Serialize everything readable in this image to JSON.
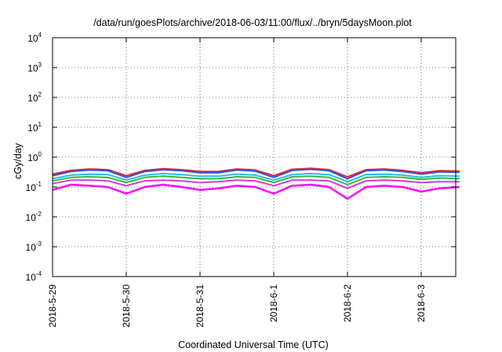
{
  "chart_data": {
    "type": "line",
    "title": "/data/run/goesPlots/archive/2018-06-03/11:00/flux/../bryn/5daysMoon.plot",
    "xlabel": "Coordinated Universal Time (UTC)",
    "ylabel": "cGy/day",
    "yscale": "log",
    "ylim": [
      0.0001,
      10000
    ],
    "xlim": [
      "2018-05-29 00:00",
      "2018-06-03 12:30"
    ],
    "x_tick_labels": [
      "2018-5-29",
      "2018-5-30",
      "2018-5-31",
      "2018-6-1",
      "2018-6-2",
      "2018-6-3"
    ],
    "y_tick_labels": [
      {
        "base": "10",
        "exp": "-4"
      },
      {
        "base": "10",
        "exp": "-3"
      },
      {
        "base": "10",
        "exp": "-2"
      },
      {
        "base": "10",
        "exp": "-1"
      },
      {
        "base": "10",
        "exp": "0"
      },
      {
        "base": "10",
        "exp": "1"
      },
      {
        "base": "10",
        "exp": "2"
      },
      {
        "base": "10",
        "exp": "3"
      },
      {
        "base": "10",
        "exp": "4"
      }
    ],
    "grid": true,
    "legend": "none",
    "x_days": [
      0,
      0.25,
      0.5,
      0.75,
      1,
      1.25,
      1.5,
      1.75,
      2,
      2.25,
      2.5,
      2.75,
      3,
      3.25,
      3.5,
      3.75,
      4,
      4.25,
      4.5,
      4.75,
      5,
      5.25,
      5.52
    ],
    "series": [
      {
        "color": "#e8262a",
        "values": [
          0.27,
          0.36,
          0.4,
          0.38,
          0.24,
          0.36,
          0.41,
          0.38,
          0.33,
          0.33,
          0.4,
          0.37,
          0.24,
          0.39,
          0.42,
          0.38,
          0.22,
          0.38,
          0.4,
          0.36,
          0.3,
          0.35,
          0.34
        ]
      },
      {
        "color": "#3a4fe0",
        "values": [
          0.24,
          0.33,
          0.37,
          0.35,
          0.21,
          0.33,
          0.38,
          0.35,
          0.3,
          0.3,
          0.37,
          0.34,
          0.21,
          0.36,
          0.39,
          0.35,
          0.19,
          0.35,
          0.37,
          0.33,
          0.27,
          0.32,
          0.31
        ]
      },
      {
        "color": "#2bc0d6",
        "values": [
          0.19,
          0.25,
          0.27,
          0.26,
          0.17,
          0.25,
          0.28,
          0.26,
          0.23,
          0.23,
          0.27,
          0.25,
          0.17,
          0.26,
          0.28,
          0.26,
          0.15,
          0.26,
          0.27,
          0.25,
          0.21,
          0.24,
          0.23
        ]
      },
      {
        "color": "#35b54a",
        "values": [
          0.16,
          0.21,
          0.22,
          0.21,
          0.14,
          0.21,
          0.23,
          0.21,
          0.19,
          0.19,
          0.22,
          0.21,
          0.14,
          0.22,
          0.23,
          0.21,
          0.12,
          0.21,
          0.22,
          0.21,
          0.18,
          0.2,
          0.19
        ]
      },
      {
        "color": "#d43bd0",
        "values": [
          0.13,
          0.17,
          0.17,
          0.16,
          0.11,
          0.16,
          0.17,
          0.16,
          0.14,
          0.15,
          0.17,
          0.16,
          0.11,
          0.17,
          0.17,
          0.16,
          0.09,
          0.16,
          0.17,
          0.16,
          0.14,
          0.15,
          0.15
        ]
      },
      {
        "color": "#ff00ff",
        "values": [
          0.08,
          0.12,
          0.11,
          0.1,
          0.06,
          0.1,
          0.12,
          0.1,
          0.08,
          0.09,
          0.11,
          0.1,
          0.06,
          0.11,
          0.12,
          0.1,
          0.04,
          0.1,
          0.11,
          0.1,
          0.07,
          0.09,
          0.1
        ]
      }
    ]
  }
}
